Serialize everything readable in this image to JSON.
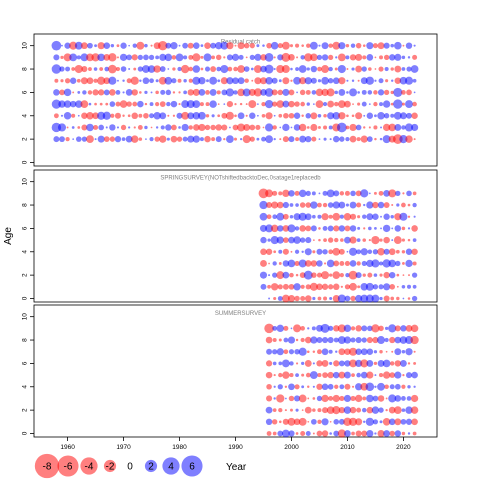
{
  "chart_data": {
    "type": "bubble",
    "ylabel": "Age",
    "xlabel": "",
    "x_ticks": [
      1960,
      1970,
      1980,
      1990,
      2000,
      2010,
      2020
    ],
    "y_ticks": [
      0,
      2,
      4,
      6,
      8,
      10
    ],
    "xlim": [
      1954,
      2026
    ],
    "ylim": [
      -0.3,
      11
    ],
    "colors": {
      "positive": "#0000ff",
      "negative": "#ff0000",
      "bubble_alpha": 0.5
    },
    "legend": {
      "values": [
        -8,
        -6,
        -4,
        -2,
        0,
        2,
        4,
        6
      ],
      "labels": [
        "-8",
        "-6",
        "-4",
        "-2",
        "0",
        "2",
        "4",
        "6"
      ],
      "title": "Year"
    },
    "panels": [
      {
        "title": "Residual catch",
        "years": [
          1958,
          2022
        ],
        "ages": [
          2,
          3,
          4,
          5,
          6,
          7,
          8,
          9,
          10
        ],
        "residuals": {
          "1958": [
            1.8,
            4.6,
            -1.2,
            4.4,
            2.2,
            -0.8,
            4.6,
            1.9,
            4.8
          ],
          "1968": [
            -1.5,
            2.1,
            -0.9,
            1.6,
            -2.2,
            3.4,
            -3.8,
            -3.6,
            0.6
          ],
          "1977": [
            -2.8,
            0.9,
            2.4,
            -1.7,
            1.3,
            -3.1,
            1.7,
            2.6,
            -4.6
          ],
          "1983": [
            2.7,
            -2.2,
            2.9,
            3.1,
            -2.6,
            3.3,
            2.9,
            -3.4,
            2.2
          ],
          "1996": [
            3.2,
            3.4,
            -2.6,
            3.5,
            3.8,
            2.9,
            4.1,
            3.9,
            -1.6
          ],
          "1999": [
            -1.9,
            2.8,
            -1.6,
            2.4,
            2.6,
            -2.5,
            -3.3,
            -4.1,
            -3.2
          ],
          "2009": [
            1.5,
            4.9,
            -2.8,
            -3.1,
            2.4,
            -2.7,
            3.4,
            -3.1,
            2.6
          ],
          "2019": [
            -4.8,
            2.4,
            3.2,
            4.5,
            4.3,
            -2.2,
            -2.4,
            2.6,
            3.0
          ]
        }
      },
      {
        "title": "SPRINGSURVEY(NOTshiftedbacktoDec,0satage1replacedb",
        "years": [
          1995,
          2022
        ],
        "ages": [
          0,
          1,
          2,
          3,
          4,
          5,
          6,
          7,
          8,
          9
        ],
        "residuals": {
          "1995": [
            0,
            1.8,
            2.6,
            -2.4,
            -2.2,
            2.1,
            2.6,
            3.1,
            3.5,
            -4.9
          ],
          "1999": [
            -3.1,
            -1.8,
            2.4,
            2.1,
            -1.9,
            -1.6,
            -2.3,
            -1.7,
            2.0,
            -2.8
          ],
          "2003": [
            -2.2,
            -1.4,
            4.1,
            -2.3,
            2.6,
            1.9,
            -1.7,
            2.3,
            -1.6,
            1.4
          ],
          "2011": [
            -1.5,
            -3.1,
            -4.0,
            2.2,
            3.4,
            -2.6,
            2.1,
            -1.9,
            2.4,
            1.6
          ],
          "2017": [
            -1.9,
            2.6,
            -2.1,
            3.6,
            1.8,
            -2.2,
            2.8,
            2.1,
            -1.8,
            2.4
          ]
        }
      },
      {
        "title": "SUMMERSURVEY",
        "years": [
          1996,
          2022
        ],
        "ages": [
          0,
          1,
          2,
          3,
          4,
          5,
          6,
          7,
          8,
          9
        ],
        "residuals": {
          "1996": [
            -1.2,
            2.1,
            2.4,
            -1.9,
            -1.6,
            -2.2,
            -2.0,
            1.8,
            -2.3,
            -4.7
          ],
          "2006": [
            -2.1,
            2.6,
            -1.9,
            -2.8,
            2.2,
            -1.7,
            -2.4,
            2.3,
            1.9,
            4.2
          ],
          "2010": [
            2.3,
            -3.6,
            2.9,
            2.6,
            -1.8,
            2.4,
            2.1,
            -2.2,
            2.7,
            2.8
          ],
          "2014": [
            2.6,
            3.4,
            -2.2,
            2.9,
            3.8,
            -2.6,
            2.4,
            2.2,
            -1.9,
            1.6
          ],
          "2019": [
            2.1,
            -2.4,
            -3.1,
            2.2,
            1.7,
            2.6,
            -2.1,
            2.4,
            2.3,
            -1.8
          ]
        }
      }
    ]
  }
}
